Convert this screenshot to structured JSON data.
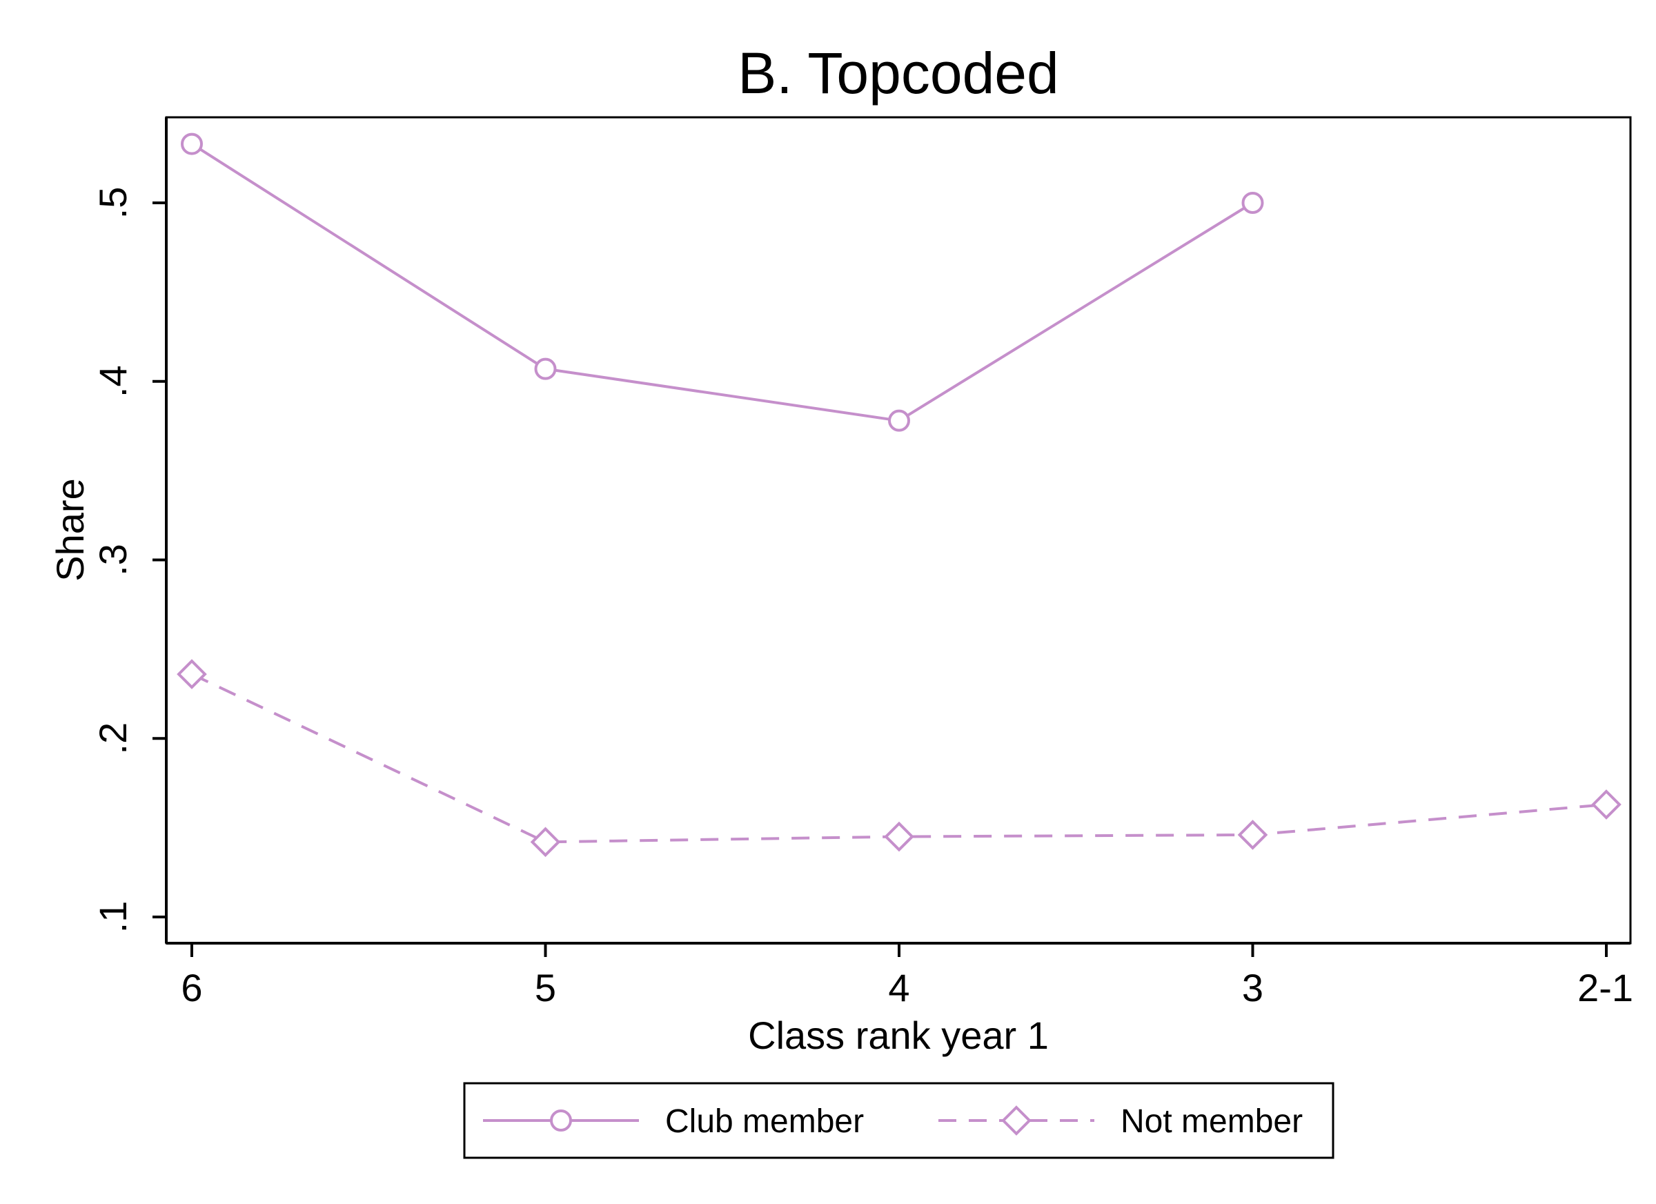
{
  "chart_data": {
    "type": "line",
    "title": "B. Topcoded",
    "xlabel": "Class rank year 1",
    "ylabel": "Share",
    "categories": [
      "6",
      "5",
      "4",
      "3",
      "2-1"
    ],
    "yticks": [
      0.1,
      0.2,
      0.3,
      0.4,
      0.5
    ],
    "ytick_labels": [
      ".1",
      ".2",
      ".3",
      ".4",
      ".5"
    ],
    "ylim": [
      0.085,
      0.548
    ],
    "grid": false,
    "legend_position": "bottom",
    "series": [
      {
        "name": "Club member",
        "values": [
          0.533,
          0.407,
          0.378,
          0.5,
          null
        ],
        "marker": "circle",
        "line_style": "solid",
        "color": "#c58fcb"
      },
      {
        "name": "Not member",
        "values": [
          0.236,
          0.142,
          0.145,
          0.146,
          0.163
        ],
        "marker": "diamond",
        "line_style": "dashed",
        "color": "#c58fcb"
      }
    ]
  }
}
